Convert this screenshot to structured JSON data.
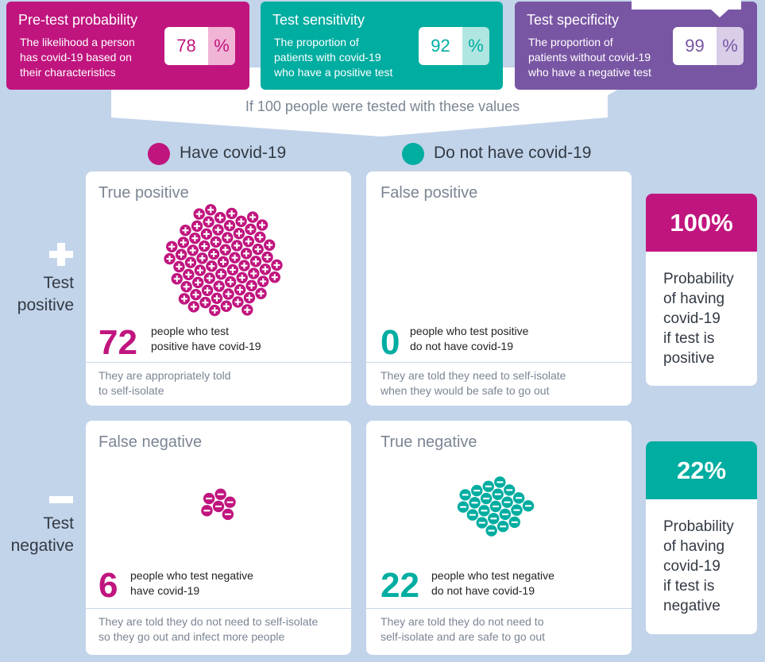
{
  "inputs": {
    "pretest": {
      "title": "Pre-test probability",
      "description_lines": [
        "The likelihood a person",
        "has covid-19 based on",
        "their characteristics"
      ],
      "value": "78",
      "unit": "%"
    },
    "sensitivity": {
      "title": "Test sensitivity",
      "description_lines": [
        "The proportion of",
        "patients with covid-19",
        "who have a positive test"
      ],
      "value": "92",
      "unit": "%"
    },
    "specificity": {
      "title": "Test specificity",
      "description_lines": [
        "The proportion of",
        "patients without covid-19",
        "who have a negative test"
      ],
      "value": "99",
      "unit": "%"
    }
  },
  "scenario_text": "If 100 people were tested with these values",
  "legend": {
    "have": "Have covid-19",
    "not_have": "Do not have covid-19"
  },
  "rows": {
    "positive": {
      "label_lines": [
        "Test",
        "positive"
      ]
    },
    "negative": {
      "label_lines": [
        "Test",
        "negative"
      ]
    }
  },
  "cards": {
    "true_positive": {
      "title": "True positive",
      "count": "72",
      "desc_lines": [
        "people who test",
        "positive have covid-19"
      ],
      "note_lines": [
        "They are appropriately told",
        "to self-isolate"
      ]
    },
    "false_positive": {
      "title": "False positive",
      "count": "0",
      "desc_lines": [
        "people who test positive",
        "do not have covid-19"
      ],
      "note_lines": [
        "They are told they need to self-isolate",
        "when they would be safe to go out"
      ]
    },
    "false_negative": {
      "title": "False negative",
      "count": "6",
      "desc_lines": [
        "people who test negative",
        "have covid-19"
      ],
      "note_lines": [
        "They are told they do not need to self-isolate",
        "so they go out and infect more people"
      ]
    },
    "true_negative": {
      "title": "True negative",
      "count": "22",
      "desc_lines": [
        "people who test negative",
        "do not have covid-19"
      ],
      "note_lines": [
        "They are told they do not need to",
        "self-isolate and are safe to go out"
      ]
    }
  },
  "probabilities": {
    "positive": {
      "value": "100%",
      "text_lines": [
        "Probability",
        "of having",
        "covid-19",
        "if test is",
        "positive"
      ]
    },
    "negative": {
      "value": "22%",
      "text_lines": [
        "Probability",
        "of having",
        "covid-19",
        "if test is",
        "negative"
      ]
    }
  },
  "colors": {
    "magenta": "#c0157e",
    "teal": "#00ada1",
    "purple": "#7956a4",
    "background": "#c2d4ea"
  },
  "icons": {
    "person_with_covid": "plus-circle-icon",
    "person_without_covid": "minus-circle-icon"
  }
}
